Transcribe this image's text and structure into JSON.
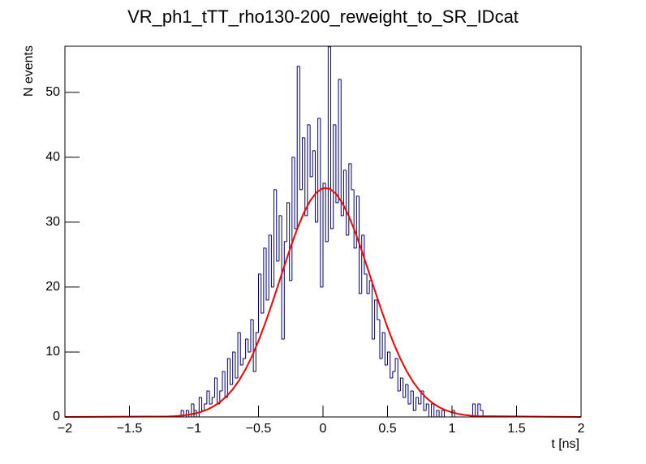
{
  "chart_data": {
    "type": "histogram",
    "title": "VR_ph1_tTT_rho130-200_reweight_to_SR_IDcat",
    "xlabel": "t [ns]",
    "ylabel": "N events",
    "color": "#000080",
    "bins": [
      -2,
      -1.98,
      -1.96,
      -1.94,
      -1.92,
      -1.9,
      -1.88,
      -1.86,
      -1.84,
      -1.82,
      -1.8,
      -1.78,
      -1.76,
      -1.74,
      -1.72,
      -1.7,
      -1.68,
      -1.66,
      -1.64,
      -1.62,
      -1.6,
      -1.58,
      -1.56,
      -1.54,
      -1.52,
      -1.5,
      -1.48,
      -1.46,
      -1.44,
      -1.42,
      -1.4,
      -1.38,
      -1.36,
      -1.34,
      -1.32,
      -1.3,
      -1.28,
      -1.26,
      -1.24,
      -1.22,
      -1.2,
      -1.18,
      -1.16,
      -1.14,
      -1.12,
      -1.1,
      -1.08,
      -1.06,
      -1.04,
      -1.02,
      -1,
      -0.98,
      -0.96,
      -0.94,
      -0.92,
      -0.9,
      -0.88,
      -0.86,
      -0.84,
      -0.82,
      -0.8,
      -0.78,
      -0.76,
      -0.74,
      -0.72,
      -0.7,
      -0.68,
      -0.66,
      -0.64,
      -0.62,
      -0.6,
      -0.58,
      -0.56,
      -0.54,
      -0.52,
      -0.5,
      -0.48,
      -0.46,
      -0.44,
      -0.42,
      -0.4,
      -0.38,
      -0.36,
      -0.34,
      -0.32,
      -0.3,
      -0.28,
      -0.26,
      -0.24,
      -0.22,
      -0.2,
      -0.18,
      -0.16,
      -0.14,
      -0.12,
      -0.1,
      -0.08,
      -0.06,
      -0.04,
      -0.02,
      0,
      0.02,
      0.04,
      0.06,
      0.08,
      0.1,
      0.12,
      0.14,
      0.16,
      0.18,
      0.2,
      0.22,
      0.24,
      0.26,
      0.28,
      0.3,
      0.32,
      0.34,
      0.36,
      0.38,
      0.4,
      0.42,
      0.44,
      0.46,
      0.48,
      0.5,
      0.52,
      0.54,
      0.56,
      0.58,
      0.6,
      0.62,
      0.64,
      0.66,
      0.68,
      0.7,
      0.72,
      0.74,
      0.76,
      0.78,
      0.8,
      0.82,
      0.84,
      0.86,
      0.88,
      0.9,
      0.92,
      0.94,
      0.96,
      0.98,
      1,
      1.02,
      1.04,
      1.06,
      1.08,
      1.1,
      1.12,
      1.14,
      1.16,
      1.18,
      1.2,
      1.22,
      1.24,
      1.26,
      1.28,
      1.3,
      1.32,
      1.34,
      1.36,
      1.38,
      1.4,
      1.42,
      1.44,
      1.46,
      1.48,
      1.5,
      1.52,
      1.54,
      1.56,
      1.58,
      1.6,
      1.62,
      1.64,
      1.66,
      1.68,
      1.7,
      1.72,
      1.74,
      1.76,
      1.78,
      1.8,
      1.82,
      1.84,
      1.86,
      1.88,
      1.9,
      1.92,
      1.94,
      1.96,
      1.98,
      2
    ],
    "counts": [
      0,
      0,
      0,
      0,
      0,
      0,
      0,
      0,
      0,
      0,
      0,
      0,
      0,
      0,
      0,
      0,
      0,
      0,
      0,
      0,
      0,
      0,
      0,
      0,
      0,
      0,
      0,
      0,
      0,
      0,
      0,
      0,
      0,
      0,
      0,
      0,
      0,
      0,
      0,
      0,
      0,
      0,
      0,
      0,
      0,
      1,
      0,
      1,
      0,
      2,
      1,
      0,
      3,
      1,
      2,
      4,
      2,
      3,
      6,
      2,
      4,
      7,
      3,
      9,
      5,
      10,
      6,
      13,
      8,
      9,
      12,
      10,
      15,
      7,
      13,
      22,
      16,
      26,
      18,
      28,
      20,
      35,
      24,
      31,
      12,
      27,
      33,
      21,
      40,
      29,
      54,
      35,
      43,
      31,
      45,
      37,
      41,
      30,
      46,
      20,
      36,
      27,
      57,
      29,
      45,
      33,
      52,
      31,
      38,
      28,
      39,
      35,
      26,
      34,
      19,
      28,
      22,
      19,
      21,
      12,
      18,
      15,
      9,
      13,
      8,
      10,
      6,
      7,
      9,
      4,
      6,
      3,
      5,
      2,
      4,
      1,
      3,
      2,
      4,
      1,
      2,
      0,
      2,
      0,
      1,
      0,
      1,
      0,
      0,
      0,
      1,
      0,
      0,
      0,
      0,
      0,
      0,
      0,
      2,
      0,
      2,
      1,
      0,
      0,
      0,
      0,
      0,
      0,
      0,
      0,
      0,
      0,
      0,
      0,
      0,
      0,
      0,
      0,
      0,
      0,
      0,
      0,
      0,
      0,
      0,
      0,
      0,
      0,
      0,
      0,
      0,
      0,
      0,
      0,
      0,
      0,
      0,
      0,
      0,
      0
    ],
    "fit": {
      "color": "#ff0000",
      "x": [
        -2,
        -1.2,
        -1.15,
        -1.1,
        -1.05,
        -1,
        -0.95,
        -0.9,
        -0.85,
        -0.8,
        -0.75,
        -0.7,
        -0.65,
        -0.6,
        -0.55,
        -0.5,
        -0.45,
        -0.4,
        -0.35,
        -0.3,
        -0.25,
        -0.2,
        -0.15,
        -0.1,
        -0.05,
        0,
        0.05,
        0.1,
        0.15,
        0.2,
        0.25,
        0.3,
        0.35,
        0.4,
        0.45,
        0.5,
        0.55,
        0.6,
        0.65,
        0.7,
        0.75,
        0.8,
        0.85,
        0.9,
        0.95,
        1,
        1.05,
        1.1,
        1.15,
        1.2,
        2
      ],
      "values": [
        0,
        0.08,
        0.13,
        0.21,
        0.33,
        0.5,
        0.76,
        1.12,
        1.61,
        2.27,
        3.14,
        4.25,
        5.65,
        7.35,
        9.37,
        11.71,
        14.33,
        17.18,
        20.19,
        23.24,
        26.21,
        28.97,
        31.37,
        33.28,
        34.6,
        35.24,
        35.17,
        34.39,
        32.95,
        30.93,
        28.45,
        25.63,
        22.63,
        19.58,
        16.59,
        13.78,
        11.22,
        8.95,
        6.99,
        5.35,
        4.01,
        2.95,
        2.12,
        1.5,
        1.03,
        0.7,
        0.47,
        0.3,
        0.19,
        0.12,
        0
      ]
    },
    "xlim": [
      -2,
      2
    ],
    "ylim": [
      0,
      57.1
    ],
    "xticks": [
      {
        "value": -2,
        "label": "−2"
      },
      {
        "value": -1.5,
        "label": "−1.5"
      },
      {
        "value": -1,
        "label": "−1"
      },
      {
        "value": -0.5,
        "label": "−0.5"
      },
      0,
      0.5,
      1,
      1.5,
      2
    ],
    "yticks": [
      0,
      10,
      20,
      30,
      40,
      50
    ]
  }
}
